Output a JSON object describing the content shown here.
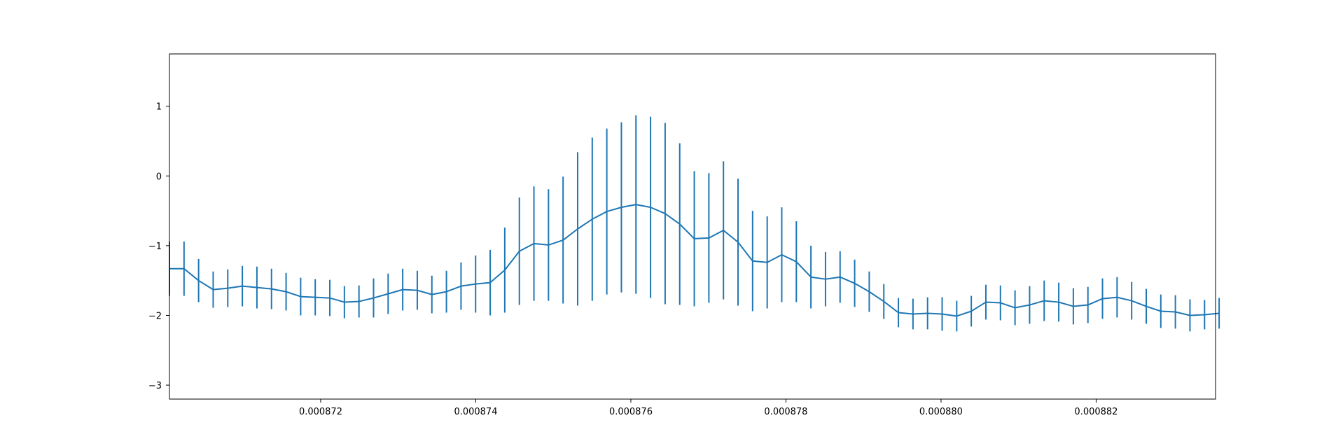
{
  "chart_data": {
    "type": "line",
    "error_bars": true,
    "title": "",
    "xlabel": "",
    "ylabel": "",
    "xlim": [
      0.00087005,
      0.00088354
    ],
    "ylim": [
      -3.2,
      1.75
    ],
    "xticks": [
      0.000872,
      0.000874,
      0.000876,
      0.000878,
      0.00088,
      0.000882
    ],
    "xtick_labels": [
      "0.000872",
      "0.000874",
      "0.000876",
      "0.000878",
      "0.000880",
      "0.000882"
    ],
    "yticks": [
      1,
      0,
      -1,
      -2,
      -3
    ],
    "ytick_labels": [
      "1",
      "0",
      "−1",
      "−2",
      "−3"
    ],
    "grid": false,
    "legend": "none",
    "color": "#1f77b4",
    "series": [
      {
        "x_start": 0.00087005,
        "x_step": 1.88e-07,
        "y": [
          -1.33,
          -1.33,
          -1.5,
          -1.63,
          -1.61,
          -1.58,
          -1.6,
          -1.62,
          -1.66,
          -1.73,
          -1.74,
          -1.75,
          -1.81,
          -1.8,
          -1.75,
          -1.69,
          -1.63,
          -1.64,
          -1.7,
          -1.66,
          -1.58,
          -1.55,
          -1.53,
          -1.35,
          -1.08,
          -0.97,
          -0.99,
          -0.92,
          -0.76,
          -0.62,
          -0.51,
          -0.45,
          -0.41,
          -0.45,
          -0.54,
          -0.69,
          -0.9,
          -0.89,
          -0.78,
          -0.95,
          -1.22,
          -1.24,
          -1.13,
          -1.23,
          -1.45,
          -1.48,
          -1.45,
          -1.54,
          -1.66,
          -1.8,
          -1.96,
          -1.98,
          -1.97,
          -1.98,
          -2.01,
          -1.94,
          -1.81,
          -1.82,
          -1.89,
          -1.85,
          -1.79,
          -1.81,
          -1.87,
          -1.85,
          -1.76,
          -1.74,
          -1.79,
          -1.87,
          -1.94,
          -1.95,
          -2.0,
          -1.99,
          -1.97
        ],
        "err": [
          0.39,
          0.39,
          0.31,
          0.26,
          0.27,
          0.29,
          0.3,
          0.29,
          0.27,
          0.27,
          0.26,
          0.26,
          0.23,
          0.23,
          0.28,
          0.29,
          0.3,
          0.28,
          0.27,
          0.3,
          0.34,
          0.41,
          0.47,
          0.61,
          0.77,
          0.82,
          0.8,
          0.91,
          1.1,
          1.17,
          1.19,
          1.22,
          1.28,
          1.3,
          1.3,
          1.16,
          0.97,
          0.93,
          0.99,
          0.91,
          0.72,
          0.66,
          0.68,
          0.58,
          0.45,
          0.39,
          0.37,
          0.34,
          0.29,
          0.25,
          0.21,
          0.22,
          0.23,
          0.24,
          0.22,
          0.22,
          0.25,
          0.25,
          0.25,
          0.27,
          0.29,
          0.28,
          0.26,
          0.26,
          0.29,
          0.29,
          0.27,
          0.25,
          0.24,
          0.24,
          0.23,
          0.21,
          0.22
        ]
      }
    ]
  }
}
